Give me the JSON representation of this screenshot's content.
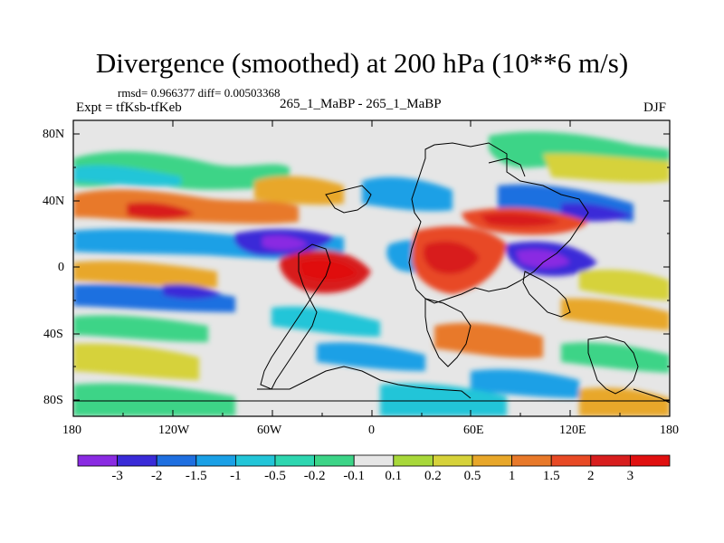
{
  "title": "Divergence (smoothed) at 200 hPa (10**6 m/s)",
  "stats": "rmsd= 0.966377 diff= 0.00503368",
  "experiment": "Expt = tfKsb-tfKeb",
  "runs": "265_1_MaBP - 265_1_MaBP",
  "season": "DJF",
  "y_ticks": [
    "80N",
    "40N",
    "0",
    "40S",
    "80S"
  ],
  "x_ticks": [
    "180",
    "120W",
    "60W",
    "0",
    "60E",
    "120E",
    "180"
  ],
  "colorbar": {
    "labels": [
      "-3",
      "-2",
      "-1.5",
      "-1",
      "-0.5",
      "-0.2",
      "-0.1",
      "0.1",
      "0.2",
      "0.5",
      "1",
      "1.5",
      "2",
      "3"
    ],
    "colors": [
      "#8a2be2",
      "#3a2bd8",
      "#1f6fe0",
      "#1aa0e6",
      "#22c5d8",
      "#2ed6b0",
      "#3cd487",
      "#e6e6e6",
      "#a8d83a",
      "#d6d23a",
      "#e8a72a",
      "#e8792a",
      "#e84a25",
      "#d81e1e",
      "#e01010"
    ]
  },
  "palette": {
    "background": "#e6e6e6",
    "frame": "#000000"
  }
}
